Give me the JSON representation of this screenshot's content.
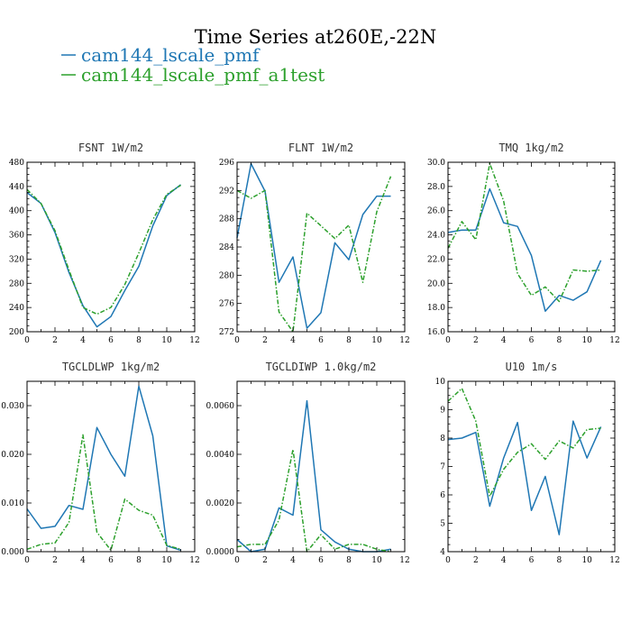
{
  "figure": {
    "title": "Time Series at260E,-22N"
  },
  "colors": {
    "series1": "#1f77b4",
    "series2": "#2ca02c"
  },
  "chart_data": [
    {
      "type": "line",
      "title": "FSNT   1W/m2",
      "xlim": [
        0,
        12
      ],
      "ylim": [
        200,
        480
      ],
      "xticks": [
        0,
        2,
        4,
        6,
        8,
        10,
        12
      ],
      "yticks": [
        200,
        240,
        280,
        320,
        360,
        400,
        440,
        480
      ],
      "yticklabels": [
        "200",
        "240",
        "280",
        "320",
        "360",
        "400",
        "440",
        "480"
      ],
      "x": [
        0,
        1,
        2,
        3,
        4,
        5,
        6,
        7,
        8,
        9,
        10,
        11
      ],
      "series": [
        {
          "name": "cam144_lscale_pmf",
          "values": [
            430,
            412,
            364,
            298,
            243,
            208,
            225,
            268,
            308,
            375,
            425,
            443
          ]
        },
        {
          "name": "cam144_lscale_pmf_a1test",
          "values": [
            435,
            412,
            367,
            302,
            240,
            229,
            240,
            278,
            330,
            385,
            427,
            442
          ]
        }
      ]
    },
    {
      "type": "line",
      "title": "FLNT   1W/m2",
      "xlim": [
        0,
        12
      ],
      "ylim": [
        272,
        296
      ],
      "xticks": [
        0,
        2,
        4,
        6,
        8,
        10,
        12
      ],
      "yticks": [
        272,
        276,
        280,
        284,
        288,
        292,
        296
      ],
      "yticklabels": [
        "272",
        "276",
        "280",
        "284",
        "288",
        "292",
        "296"
      ],
      "x": [
        0,
        1,
        2,
        3,
        4,
        5,
        6,
        7,
        8,
        9,
        10,
        11
      ],
      "series": [
        {
          "name": "cam144_lscale_pmf",
          "values": [
            285.3,
            295.8,
            291.9,
            279.0,
            282.6,
            272.5,
            274.7,
            284.6,
            282.2,
            288.6,
            291.2,
            291.2
          ]
        },
        {
          "name": "cam144_lscale_pmf_a1test",
          "values": [
            292.0,
            290.9,
            292.0,
            274.8,
            272.0,
            288.8,
            287.0,
            285.2,
            287.1,
            279.0,
            289.0,
            294.0
          ]
        }
      ]
    },
    {
      "type": "line",
      "title": "TMQ   1kg/m2",
      "xlim": [
        0,
        12
      ],
      "ylim": [
        16,
        30
      ],
      "xticks": [
        0,
        2,
        4,
        6,
        8,
        10,
        12
      ],
      "yticks": [
        16,
        18,
        20,
        22,
        24,
        26,
        28,
        30
      ],
      "yticklabels": [
        "16.0",
        "18.0",
        "20.0",
        "22.0",
        "24.0",
        "26.0",
        "28.0",
        "30.0"
      ],
      "x": [
        0,
        1,
        2,
        3,
        4,
        5,
        6,
        7,
        8,
        9,
        10,
        11
      ],
      "series": [
        {
          "name": "cam144_lscale_pmf",
          "values": [
            24.2,
            24.4,
            24.4,
            27.8,
            25.0,
            24.7,
            22.3,
            17.7,
            19.0,
            18.6,
            19.3,
            21.9
          ]
        },
        {
          "name": "cam144_lscale_pmf_a1test",
          "values": [
            22.9,
            25.1,
            23.6,
            29.9,
            26.8,
            20.8,
            19.0,
            19.7,
            18.5,
            21.1,
            21.0,
            21.1
          ]
        }
      ]
    },
    {
      "type": "line",
      "title": "TGCLDLWP   1kg/m2",
      "xlim": [
        0,
        12
      ],
      "ylim": [
        0,
        0.035
      ],
      "xticks": [
        0,
        2,
        4,
        6,
        8,
        10,
        12
      ],
      "yticks": [
        0,
        0.01,
        0.02,
        0.03
      ],
      "yticklabels": [
        "0.000",
        "0.010",
        "0.020",
        "0.030"
      ],
      "x": [
        0,
        1,
        2,
        3,
        4,
        5,
        6,
        7,
        8,
        9,
        10,
        11
      ],
      "series": [
        {
          "name": "cam144_lscale_pmf",
          "values": [
            0.0088,
            0.0048,
            0.0052,
            0.0095,
            0.0087,
            0.0255,
            0.02,
            0.0155,
            0.034,
            0.0238,
            0.0012,
            0.0003
          ]
        },
        {
          "name": "cam144_lscale_pmf_a1test",
          "values": [
            0.0005,
            0.0015,
            0.0018,
            0.006,
            0.024,
            0.004,
            0.0003,
            0.0108,
            0.0085,
            0.0075,
            0.0013,
            0.0005
          ]
        }
      ]
    },
    {
      "type": "line",
      "title": "TGCLDIWP   1.0kg/m2",
      "xlim": [
        0,
        12
      ],
      "ylim": [
        0,
        0.007
      ],
      "xticks": [
        0,
        2,
        4,
        6,
        8,
        10,
        12
      ],
      "yticks": [
        0,
        0.002,
        0.004,
        0.006
      ],
      "yticklabels": [
        "0.0000",
        "0.0020",
        "0.0040",
        "0.0060"
      ],
      "x": [
        0,
        1,
        2,
        3,
        4,
        5,
        6,
        7,
        8,
        9,
        10,
        11
      ],
      "series": [
        {
          "name": "cam144_lscale_pmf",
          "values": [
            0.0005,
            0.0,
            0.0001,
            0.0018,
            0.0015,
            0.0062,
            0.0009,
            0.0004,
            0.0001,
            0.0,
            0.0,
            0.0001
          ]
        },
        {
          "name": "cam144_lscale_pmf_a1test",
          "values": [
            0.0002,
            0.0003,
            0.0003,
            0.0013,
            0.0042,
            0.0,
            0.0007,
            0.0001,
            0.0003,
            0.0003,
            0.0001,
            0.0
          ]
        }
      ]
    },
    {
      "type": "line",
      "title": "U10   1m/s",
      "xlim": [
        0,
        12
      ],
      "ylim": [
        4,
        10
      ],
      "xticks": [
        0,
        2,
        4,
        6,
        8,
        10,
        12
      ],
      "yticks": [
        4,
        5,
        6,
        7,
        8,
        9,
        10
      ],
      "yticklabels": [
        "4",
        "5",
        "6",
        "7",
        "8",
        "9",
        "10"
      ],
      "x": [
        0,
        1,
        2,
        3,
        4,
        5,
        6,
        7,
        8,
        9,
        10,
        11
      ],
      "series": [
        {
          "name": "cam144_lscale_pmf",
          "values": [
            7.95,
            8.0,
            8.2,
            5.6,
            7.3,
            8.55,
            5.45,
            6.65,
            4.6,
            8.6,
            7.3,
            8.4
          ]
        },
        {
          "name": "cam144_lscale_pmf_a1test",
          "values": [
            9.3,
            9.75,
            8.6,
            5.95,
            6.9,
            7.5,
            7.8,
            7.25,
            7.9,
            7.65,
            8.3,
            8.35
          ]
        }
      ]
    }
  ]
}
